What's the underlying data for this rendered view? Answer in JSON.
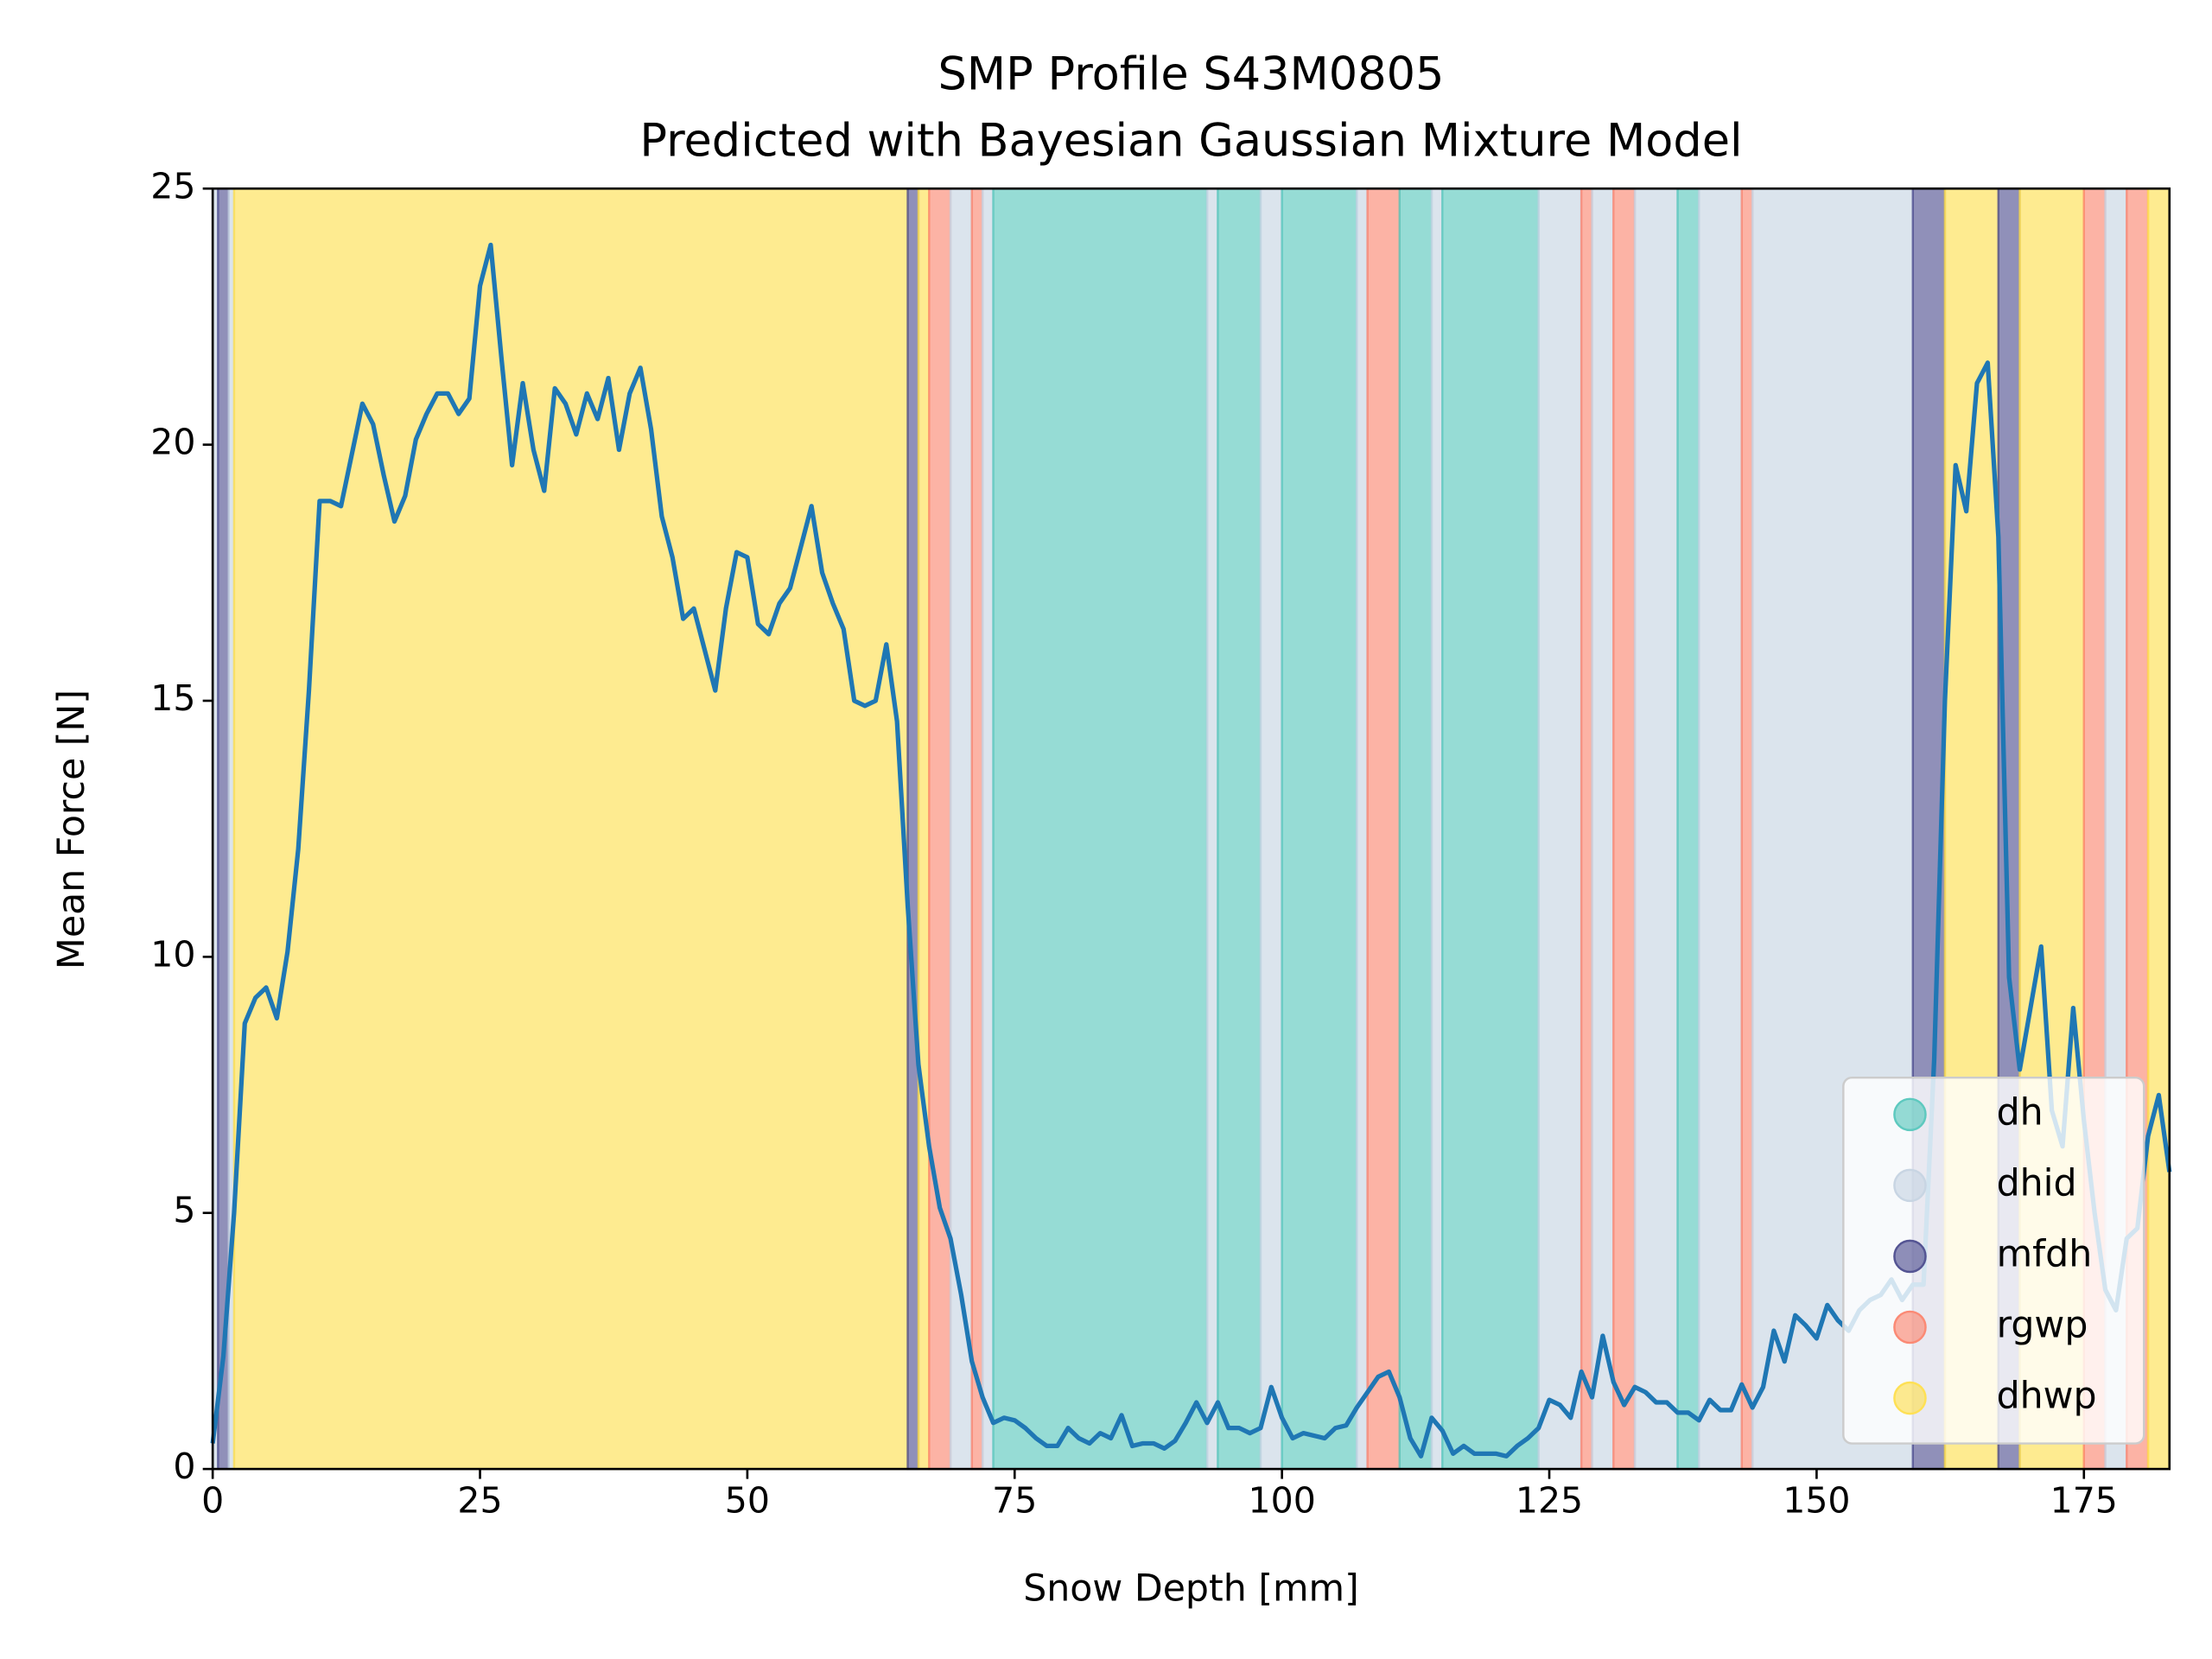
{
  "chart_data": {
    "type": "line",
    "title": "SMP Profile S43M0805",
    "subtitle": "Predicted with Bayesian Gaussian Mixture Model",
    "x_label": "Snow Depth [mm]",
    "y_label": "Mean Force [N]",
    "xlim": [
      0,
      183
    ],
    "ylim": [
      0,
      25
    ],
    "xticks": [
      0,
      25,
      50,
      75,
      100,
      125,
      150,
      175
    ],
    "yticks": [
      0,
      5,
      10,
      15,
      20,
      25
    ],
    "legend_loc": "lower right",
    "classes": [
      {
        "name": "dh",
        "color": "#5ec9bf"
      },
      {
        "name": "dhid",
        "color": "#c8d5e3"
      },
      {
        "name": "mfdh",
        "color": "#545493"
      },
      {
        "name": "rgwp",
        "color": "#fb8a75"
      },
      {
        "name": "dhwp",
        "color": "#fee055"
      }
    ],
    "spans": [
      {
        "start": 0,
        "end": 0.5,
        "label": "dhid"
      },
      {
        "start": 0.5,
        "end": 1.5,
        "label": "mfdh"
      },
      {
        "start": 1.5,
        "end": 2,
        "label": "dhid"
      },
      {
        "start": 2,
        "end": 65,
        "label": "dhwp"
      },
      {
        "start": 65,
        "end": 66,
        "label": "mfdh"
      },
      {
        "start": 66,
        "end": 67,
        "label": "dhwp"
      },
      {
        "start": 67,
        "end": 69,
        "label": "rgwp"
      },
      {
        "start": 69,
        "end": 71,
        "label": "dhid"
      },
      {
        "start": 71,
        "end": 72,
        "label": "rgwp"
      },
      {
        "start": 72,
        "end": 73,
        "label": "dhid"
      },
      {
        "start": 73,
        "end": 93,
        "label": "dh"
      },
      {
        "start": 93,
        "end": 94,
        "label": "dhid"
      },
      {
        "start": 94,
        "end": 98,
        "label": "dh"
      },
      {
        "start": 98,
        "end": 100,
        "label": "dhid"
      },
      {
        "start": 100,
        "end": 107,
        "label": "dh"
      },
      {
        "start": 107,
        "end": 108,
        "label": "dhid"
      },
      {
        "start": 108,
        "end": 111,
        "label": "rgwp"
      },
      {
        "start": 111,
        "end": 114,
        "label": "dh"
      },
      {
        "start": 114,
        "end": 115,
        "label": "dhid"
      },
      {
        "start": 115,
        "end": 124,
        "label": "dh"
      },
      {
        "start": 124,
        "end": 128,
        "label": "dhid"
      },
      {
        "start": 128,
        "end": 129,
        "label": "rgwp"
      },
      {
        "start": 129,
        "end": 131,
        "label": "dhid"
      },
      {
        "start": 131,
        "end": 133,
        "label": "rgwp"
      },
      {
        "start": 133,
        "end": 137,
        "label": "dhid"
      },
      {
        "start": 137,
        "end": 139,
        "label": "dh"
      },
      {
        "start": 139,
        "end": 143,
        "label": "dhid"
      },
      {
        "start": 143,
        "end": 144,
        "label": "rgwp"
      },
      {
        "start": 144,
        "end": 159,
        "label": "dhid"
      },
      {
        "start": 159,
        "end": 162,
        "label": "mfdh"
      },
      {
        "start": 162,
        "end": 167,
        "label": "dhwp"
      },
      {
        "start": 167,
        "end": 169,
        "label": "mfdh"
      },
      {
        "start": 169,
        "end": 175,
        "label": "dhwp"
      },
      {
        "start": 175,
        "end": 177,
        "label": "rgwp"
      },
      {
        "start": 177,
        "end": 179,
        "label": "dhid"
      },
      {
        "start": 179,
        "end": 181,
        "label": "rgwp"
      },
      {
        "start": 181,
        "end": 183,
        "label": "dhwp"
      }
    ],
    "x": [
      0,
      1,
      2,
      3,
      4,
      5,
      6,
      7,
      8,
      9,
      10,
      11,
      12,
      13,
      14,
      15,
      16,
      17,
      18,
      19,
      20,
      21,
      22,
      23,
      24,
      25,
      26,
      27,
      28,
      29,
      30,
      31,
      32,
      33,
      34,
      35,
      36,
      37,
      38,
      39,
      40,
      41,
      42,
      43,
      44,
      45,
      46,
      47,
      48,
      49,
      50,
      51,
      52,
      53,
      54,
      55,
      56,
      57,
      58,
      59,
      60,
      61,
      62,
      63,
      64,
      65,
      66,
      67,
      68,
      69,
      70,
      71,
      72,
      73,
      74,
      75,
      76,
      77,
      78,
      79,
      80,
      81,
      82,
      83,
      84,
      85,
      86,
      87,
      88,
      89,
      90,
      91,
      92,
      93,
      94,
      95,
      96,
      97,
      98,
      99,
      100,
      101,
      102,
      103,
      104,
      105,
      106,
      107,
      108,
      109,
      110,
      111,
      112,
      113,
      114,
      115,
      116,
      117,
      118,
      119,
      120,
      121,
      122,
      123,
      124,
      125,
      126,
      127,
      128,
      129,
      130,
      131,
      132,
      133,
      134,
      135,
      136,
      137,
      138,
      139,
      140,
      141,
      142,
      143,
      144,
      145,
      146,
      147,
      148,
      149,
      150,
      151,
      152,
      153,
      154,
      155,
      156,
      157,
      158,
      159,
      160,
      161,
      162,
      163,
      164,
      165,
      166,
      167,
      168,
      169,
      170,
      171,
      172,
      173,
      174,
      175,
      176,
      177,
      178,
      179,
      180,
      181,
      182,
      183
    ],
    "series": [
      {
        "color": "#1f77b4",
        "values": [
          0.5,
          2.2,
          5,
          8.7,
          9.2,
          9.4,
          8.8,
          10.1,
          12.1,
          15.2,
          18.9,
          18.9,
          18.8,
          19.8,
          20.8,
          20.4,
          19.4,
          18.5,
          19.0,
          20.1,
          20.6,
          21.0,
          21.0,
          20.6,
          20.9,
          23.1,
          23.9,
          21.7,
          19.6,
          21.2,
          19.9,
          19.1,
          21.1,
          20.8,
          20.2,
          21.0,
          20.5,
          21.3,
          19.9,
          21.0,
          21.5,
          20.3,
          18.6,
          17.8,
          16.6,
          16.8,
          16.0,
          15.2,
          16.8,
          17.9,
          17.8,
          16.5,
          16.3,
          16.9,
          17.2,
          18.0,
          18.8,
          17.5,
          16.9,
          16.4,
          15.0,
          14.9,
          15.0,
          16.1,
          14.6,
          11.0,
          7.9,
          6.3,
          5.1,
          4.5,
          3.4,
          2.1,
          1.4,
          0.9,
          1.0,
          0.95,
          0.8,
          0.6,
          0.45,
          0.45,
          0.8,
          0.6,
          0.5,
          0.7,
          0.6,
          1.05,
          0.45,
          0.5,
          0.5,
          0.4,
          0.55,
          0.9,
          1.3,
          0.9,
          1.3,
          0.8,
          0.8,
          0.7,
          0.8,
          1.6,
          1.0,
          0.6,
          0.7,
          0.65,
          0.6,
          0.8,
          0.85,
          1.2,
          1.5,
          1.8,
          1.9,
          1.4,
          0.6,
          0.25,
          1.0,
          0.75,
          0.3,
          0.45,
          0.3,
          0.3,
          0.3,
          0.25,
          0.45,
          0.6,
          0.8,
          1.35,
          1.25,
          1.0,
          1.9,
          1.4,
          2.6,
          1.7,
          1.25,
          1.6,
          1.5,
          1.3,
          1.3,
          1.1,
          1.1,
          0.95,
          1.35,
          1.15,
          1.15,
          1.65,
          1.2,
          1.6,
          2.7,
          2.1,
          3.0,
          2.8,
          2.55,
          3.2,
          2.9,
          2.7,
          3.1,
          3.3,
          3.4,
          3.7,
          3.3,
          3.6,
          3.6,
          8,
          15,
          19.6,
          18.7,
          21.2,
          21.6,
          18.2,
          9.6,
          7.8,
          9.0,
          10.2,
          7.0,
          6.3,
          9.0,
          6.8,
          5.0,
          3.5,
          3.1,
          4.5,
          4.7,
          6.5,
          7.3,
          5.8
        ]
      }
    ]
  }
}
